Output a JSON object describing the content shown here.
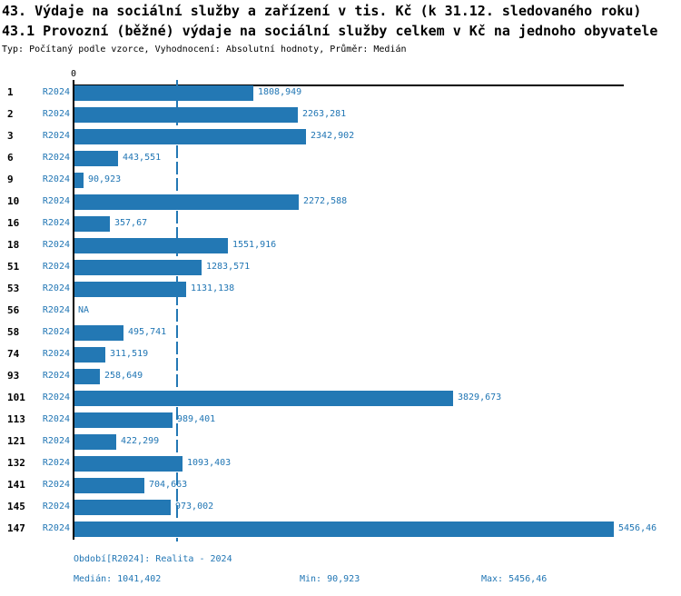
{
  "title_line1": "43. Výdaje na sociální služby a zařízení v tis. Kč (k 31.12. sledovaného roku)",
  "title_line2": "43.1 Provozní (běžné) výdaje na sociální služby celkem v Kč na jednoho obyvatele",
  "meta_line": "Typ: Počítaný podle vzorce, Vyhodnocení: Absolutní hodnoty, Průměr: Medián",
  "colors": {
    "bar": "#2378b4",
    "accent_text": "#2176b4",
    "axis": "#000000"
  },
  "chart_data": {
    "type": "bar",
    "orientation": "horizontal",
    "title": "43.1 Provozní (běžné) výdaje na sociální služby celkem v Kč na jednoho obyvatele",
    "axis_zero_label": "0",
    "series_label": "R2024",
    "categories": [
      "1",
      "2",
      "3",
      "6",
      "9",
      "10",
      "16",
      "18",
      "51",
      "53",
      "56",
      "58",
      "74",
      "93",
      "101",
      "113",
      "121",
      "132",
      "141",
      "145",
      "147"
    ],
    "values": [
      1808.949,
      2263.281,
      2342.902,
      443.551,
      90.923,
      2272.588,
      357.67,
      1551.916,
      1283.571,
      1131.138,
      null,
      495.741,
      311.519,
      258.649,
      3829.673,
      989.401,
      422.299,
      1093.403,
      704.663,
      973.002,
      5456.46
    ],
    "value_labels": [
      "1808,949",
      "2263,281",
      "2342,902",
      "443,551",
      "90,923",
      "2272,588",
      "357,67",
      "1551,916",
      "1283,571",
      "1131,138",
      "NA",
      "495,741",
      "311,519",
      "258,649",
      "3829,673",
      "989,401",
      "422,299",
      "1093,403",
      "704,663",
      "973,002",
      "5456,46"
    ],
    "xlim": [
      0,
      5550
    ],
    "grid": false,
    "legend_position": "none",
    "median_value": 1041.402,
    "median_line": true
  },
  "footer": {
    "period": "Období[R2024]: Realita - 2024",
    "median": "Medián: 1041,402",
    "min": "Min: 90,923",
    "max": "Max: 5456,46"
  }
}
